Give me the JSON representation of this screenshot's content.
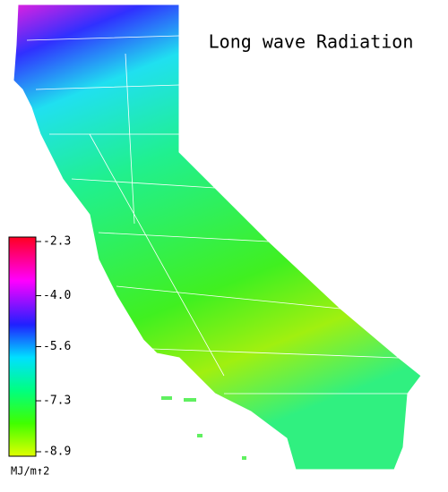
{
  "title": "Long wave Radiation",
  "colorbar": {
    "lim": [
      -8.9,
      -2.3
    ],
    "ticks": [
      -2.3,
      {
        "value": -4.0,
        "label": "-4.0"
      },
      -5.6,
      -7.3,
      -8.9
    ],
    "unit": "MJ/m↑2"
  }
}
